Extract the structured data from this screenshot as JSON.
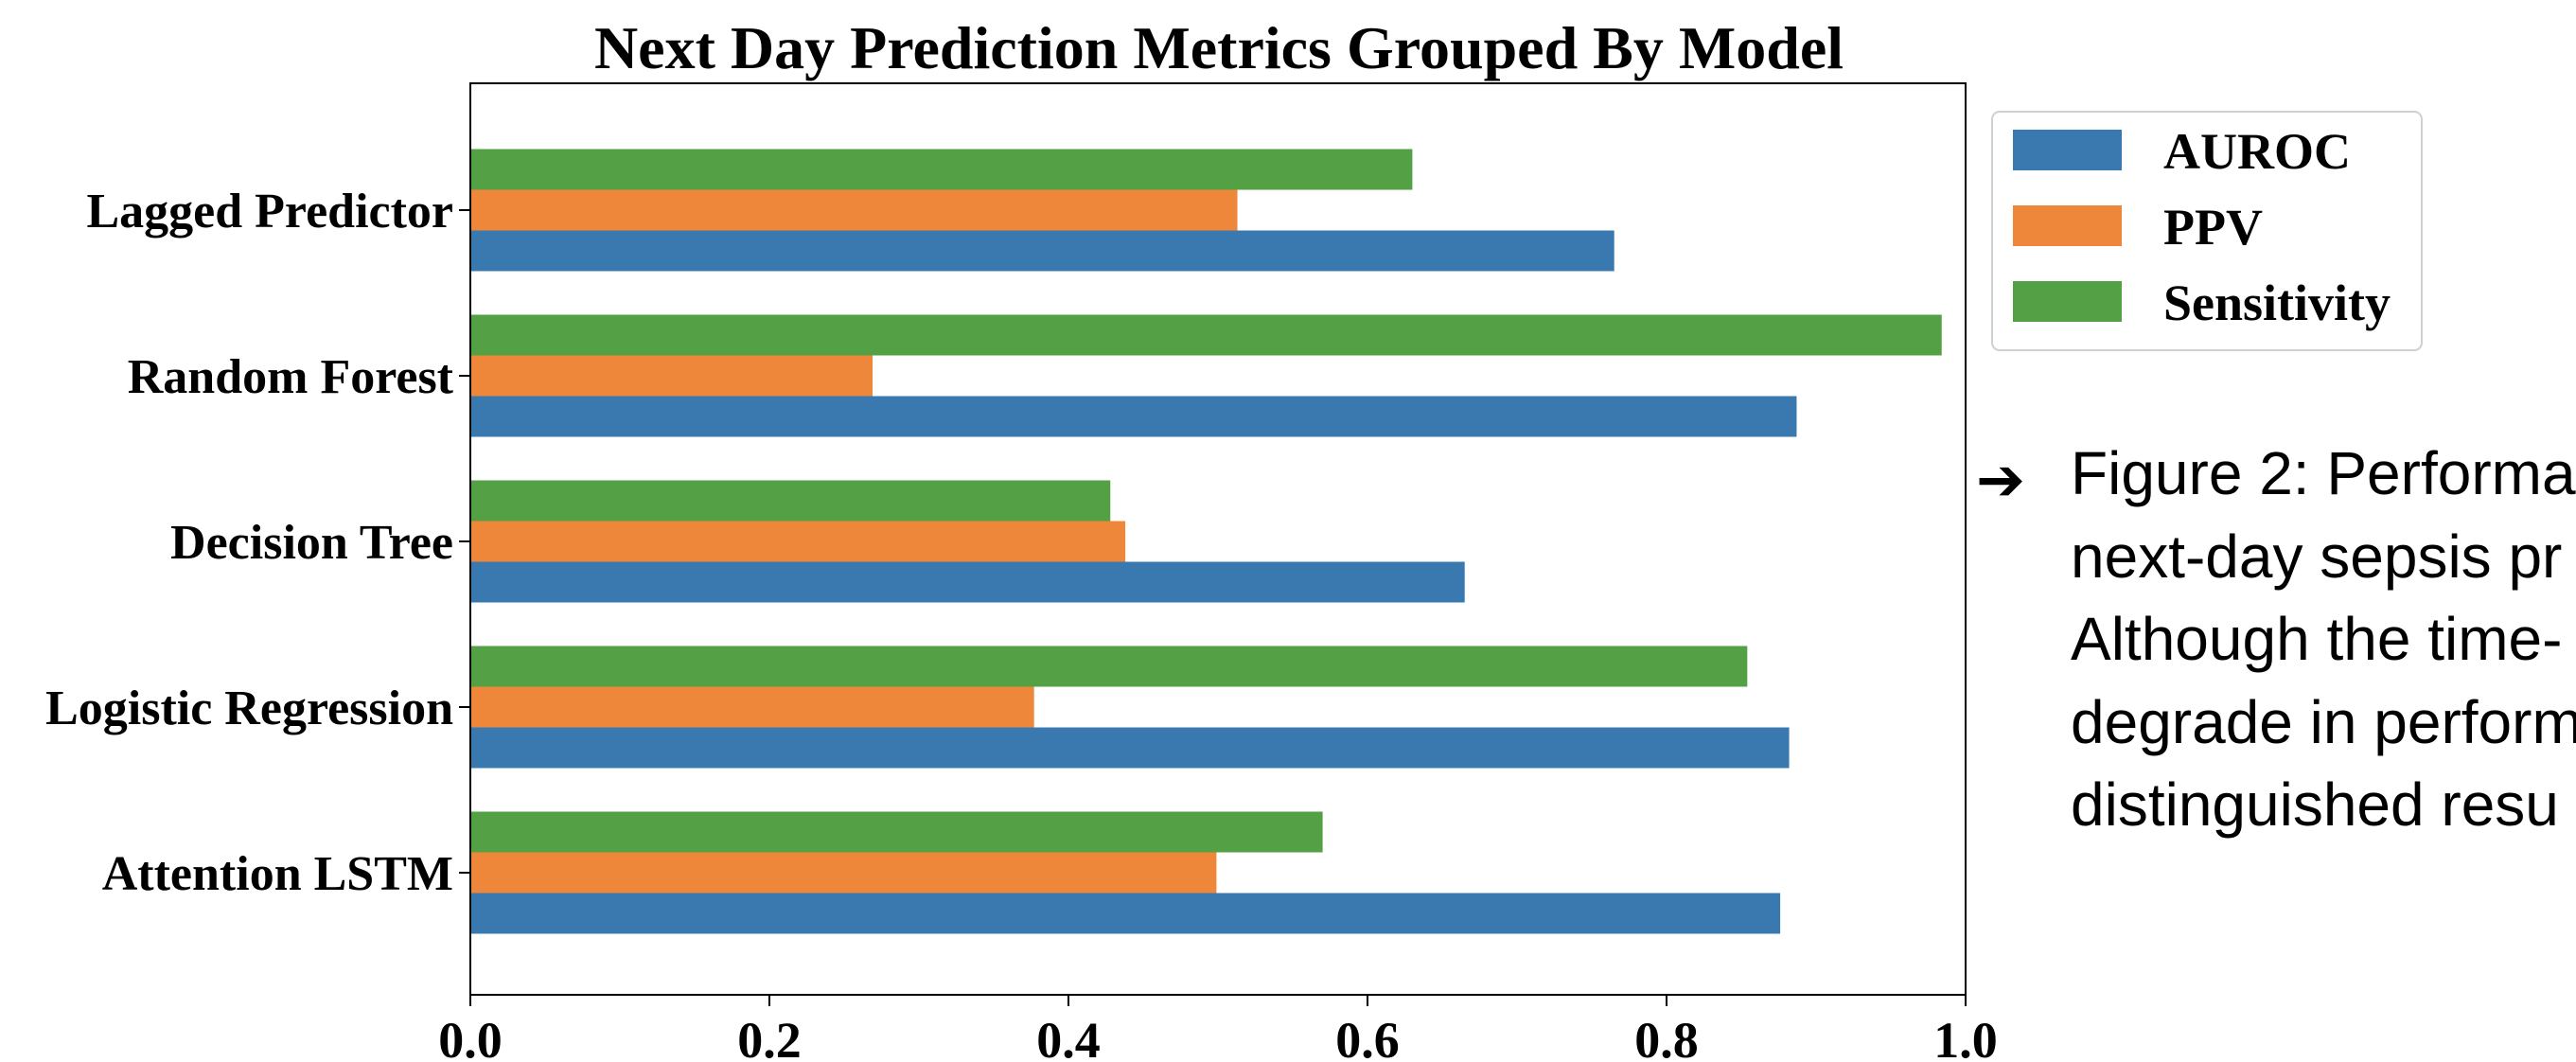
{
  "chart_data": {
    "type": "bar",
    "orientation": "horizontal",
    "title": "Next Day Prediction Metrics Grouped By Model",
    "categories": [
      "Lagged Predictor",
      "Random Forest",
      "Decision Tree",
      "Logistic Regression",
      "Attention LSTM"
    ],
    "series": [
      {
        "name": "AUROC",
        "color": "#3a78b0",
        "values": [
          0.765,
          0.887,
          0.665,
          0.882,
          0.876
        ]
      },
      {
        "name": "PPV",
        "color": "#ee873a",
        "values": [
          0.513,
          0.269,
          0.438,
          0.377,
          0.499
        ]
      },
      {
        "name": "Sensitivity",
        "color": "#54a044",
        "values": [
          0.63,
          0.984,
          0.428,
          0.854,
          0.57
        ]
      }
    ],
    "xlim": [
      0.0,
      1.0
    ],
    "xticks": [
      "0.0",
      "0.2",
      "0.4",
      "0.6",
      "0.8",
      "1.0"
    ],
    "grid": false,
    "legend_position": "outside-top-right"
  },
  "caption": {
    "bullet_icon": "right-arrow-icon",
    "lines": [
      "Figure 2: Performa",
      "next-day sepsis pr",
      "Although the time-",
      "degrade in perform",
      "distinguished resu"
    ]
  }
}
